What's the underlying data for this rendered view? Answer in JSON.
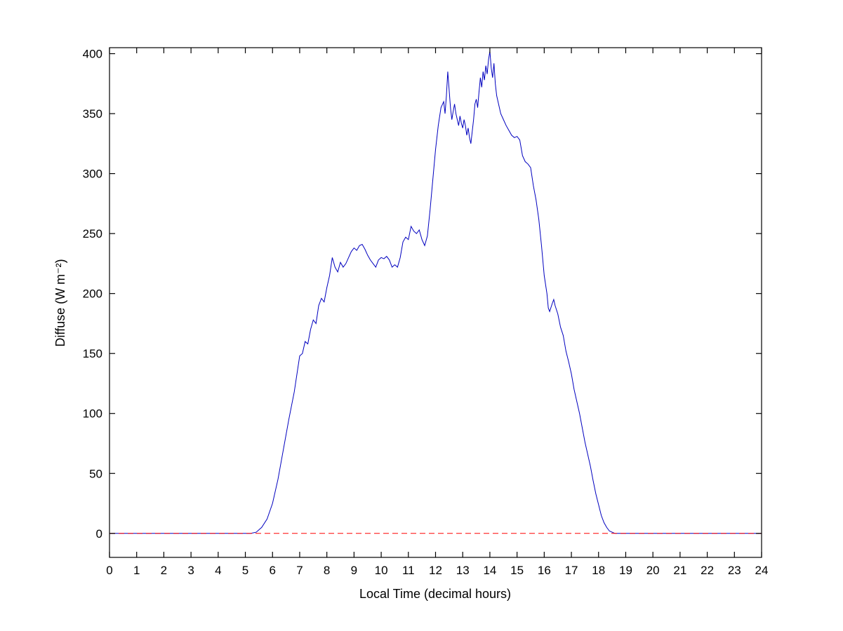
{
  "chart_data": {
    "type": "line",
    "title": "",
    "xlabel": "Local Time (decimal hours)",
    "ylabel": "Diffuse (W m⁻²)",
    "xlim": [
      0,
      24
    ],
    "ylim": [
      -20,
      405
    ],
    "xticks": [
      0,
      1,
      2,
      3,
      4,
      5,
      6,
      7,
      8,
      9,
      10,
      11,
      12,
      13,
      14,
      15,
      16,
      17,
      18,
      19,
      20,
      21,
      22,
      23,
      24
    ],
    "yticks": [
      0,
      50,
      100,
      150,
      200,
      250,
      300,
      350,
      400
    ],
    "grid": false,
    "legend": "none",
    "axis_color": "#000000",
    "background_color": "#ffffff",
    "series": [
      {
        "name": "diffuse-irradiance",
        "color": "#0000bf",
        "style": "solid",
        "points": [
          [
            0,
            0
          ],
          [
            0.5,
            0
          ],
          [
            1,
            0
          ],
          [
            1.5,
            0
          ],
          [
            2,
            0
          ],
          [
            2.5,
            0
          ],
          [
            3,
            0
          ],
          [
            3.5,
            0
          ],
          [
            4,
            0
          ],
          [
            4.5,
            0
          ],
          [
            5,
            0
          ],
          [
            5.2,
            0
          ],
          [
            5.4,
            1
          ],
          [
            5.6,
            5
          ],
          [
            5.8,
            12
          ],
          [
            6,
            25
          ],
          [
            6.2,
            45
          ],
          [
            6.4,
            70
          ],
          [
            6.6,
            95
          ],
          [
            6.8,
            118
          ],
          [
            7,
            148
          ],
          [
            7.1,
            150
          ],
          [
            7.2,
            160
          ],
          [
            7.3,
            158
          ],
          [
            7.4,
            170
          ],
          [
            7.5,
            178
          ],
          [
            7.6,
            175
          ],
          [
            7.7,
            190
          ],
          [
            7.8,
            196
          ],
          [
            7.9,
            193
          ],
          [
            8,
            205
          ],
          [
            8.1,
            215
          ],
          [
            8.2,
            230
          ],
          [
            8.3,
            222
          ],
          [
            8.4,
            218
          ],
          [
            8.5,
            226
          ],
          [
            8.6,
            222
          ],
          [
            8.7,
            225
          ],
          [
            8.8,
            230
          ],
          [
            8.9,
            235
          ],
          [
            9,
            238
          ],
          [
            9.1,
            236
          ],
          [
            9.2,
            240
          ],
          [
            9.3,
            241
          ],
          [
            9.4,
            237
          ],
          [
            9.5,
            232
          ],
          [
            9.6,
            228
          ],
          [
            9.7,
            225
          ],
          [
            9.8,
            222
          ],
          [
            9.9,
            228
          ],
          [
            10,
            230
          ],
          [
            10.1,
            229
          ],
          [
            10.2,
            231
          ],
          [
            10.3,
            228
          ],
          [
            10.4,
            222
          ],
          [
            10.5,
            224
          ],
          [
            10.6,
            222
          ],
          [
            10.7,
            230
          ],
          [
            10.8,
            243
          ],
          [
            10.9,
            247
          ],
          [
            11,
            245
          ],
          [
            11.1,
            256
          ],
          [
            11.2,
            252
          ],
          [
            11.3,
            250
          ],
          [
            11.4,
            253
          ],
          [
            11.5,
            245
          ],
          [
            11.6,
            240
          ],
          [
            11.7,
            248
          ],
          [
            11.8,
            270
          ],
          [
            11.9,
            295
          ],
          [
            12,
            320
          ],
          [
            12.1,
            340
          ],
          [
            12.2,
            355
          ],
          [
            12.3,
            360
          ],
          [
            12.35,
            350
          ],
          [
            12.4,
            365
          ],
          [
            12.45,
            385
          ],
          [
            12.5,
            370
          ],
          [
            12.55,
            355
          ],
          [
            12.6,
            345
          ],
          [
            12.65,
            352
          ],
          [
            12.7,
            358
          ],
          [
            12.75,
            350
          ],
          [
            12.8,
            345
          ],
          [
            12.85,
            340
          ],
          [
            12.9,
            348
          ],
          [
            12.95,
            342
          ],
          [
            13,
            338
          ],
          [
            13.05,
            345
          ],
          [
            13.1,
            340
          ],
          [
            13.15,
            332
          ],
          [
            13.2,
            338
          ],
          [
            13.25,
            330
          ],
          [
            13.3,
            325
          ],
          [
            13.35,
            335
          ],
          [
            13.4,
            345
          ],
          [
            13.45,
            358
          ],
          [
            13.5,
            362
          ],
          [
            13.55,
            355
          ],
          [
            13.6,
            368
          ],
          [
            13.65,
            380
          ],
          [
            13.7,
            372
          ],
          [
            13.75,
            385
          ],
          [
            13.8,
            378
          ],
          [
            13.85,
            390
          ],
          [
            13.9,
            383
          ],
          [
            13.95,
            395
          ],
          [
            14,
            402
          ],
          [
            14.05,
            388
          ],
          [
            14.1,
            380
          ],
          [
            14.15,
            392
          ],
          [
            14.2,
            375
          ],
          [
            14.25,
            365
          ],
          [
            14.3,
            360
          ],
          [
            14.4,
            350
          ],
          [
            14.5,
            345
          ],
          [
            14.6,
            340
          ],
          [
            14.7,
            336
          ],
          [
            14.8,
            332
          ],
          [
            14.9,
            330
          ],
          [
            15,
            331
          ],
          [
            15.1,
            328
          ],
          [
            15.2,
            315
          ],
          [
            15.3,
            310
          ],
          [
            15.4,
            308
          ],
          [
            15.5,
            305
          ],
          [
            15.6,
            290
          ],
          [
            15.7,
            278
          ],
          [
            15.8,
            262
          ],
          [
            15.9,
            240
          ],
          [
            16,
            215
          ],
          [
            16.1,
            200
          ],
          [
            16.15,
            188
          ],
          [
            16.2,
            185
          ],
          [
            16.3,
            192
          ],
          [
            16.35,
            195
          ],
          [
            16.4,
            190
          ],
          [
            16.5,
            183
          ],
          [
            16.6,
            172
          ],
          [
            16.7,
            165
          ],
          [
            16.8,
            152
          ],
          [
            16.9,
            143
          ],
          [
            17,
            133
          ],
          [
            17.1,
            120
          ],
          [
            17.2,
            110
          ],
          [
            17.3,
            100
          ],
          [
            17.4,
            88
          ],
          [
            17.5,
            76
          ],
          [
            17.6,
            66
          ],
          [
            17.7,
            56
          ],
          [
            17.8,
            44
          ],
          [
            17.9,
            33
          ],
          [
            18,
            24
          ],
          [
            18.1,
            15
          ],
          [
            18.2,
            9
          ],
          [
            18.3,
            5
          ],
          [
            18.4,
            2
          ],
          [
            18.5,
            1
          ],
          [
            18.6,
            0
          ],
          [
            19,
            0
          ],
          [
            19.5,
            0
          ],
          [
            20,
            0
          ],
          [
            20.5,
            0
          ],
          [
            21,
            0
          ],
          [
            21.5,
            0
          ],
          [
            22,
            0
          ],
          [
            22.5,
            0
          ],
          [
            23,
            0
          ],
          [
            23.5,
            0
          ],
          [
            24,
            0
          ]
        ]
      },
      {
        "name": "zero-reference",
        "color": "#ff0000",
        "style": "dashed",
        "points": [
          [
            0,
            0
          ],
          [
            24,
            0
          ]
        ]
      }
    ]
  }
}
